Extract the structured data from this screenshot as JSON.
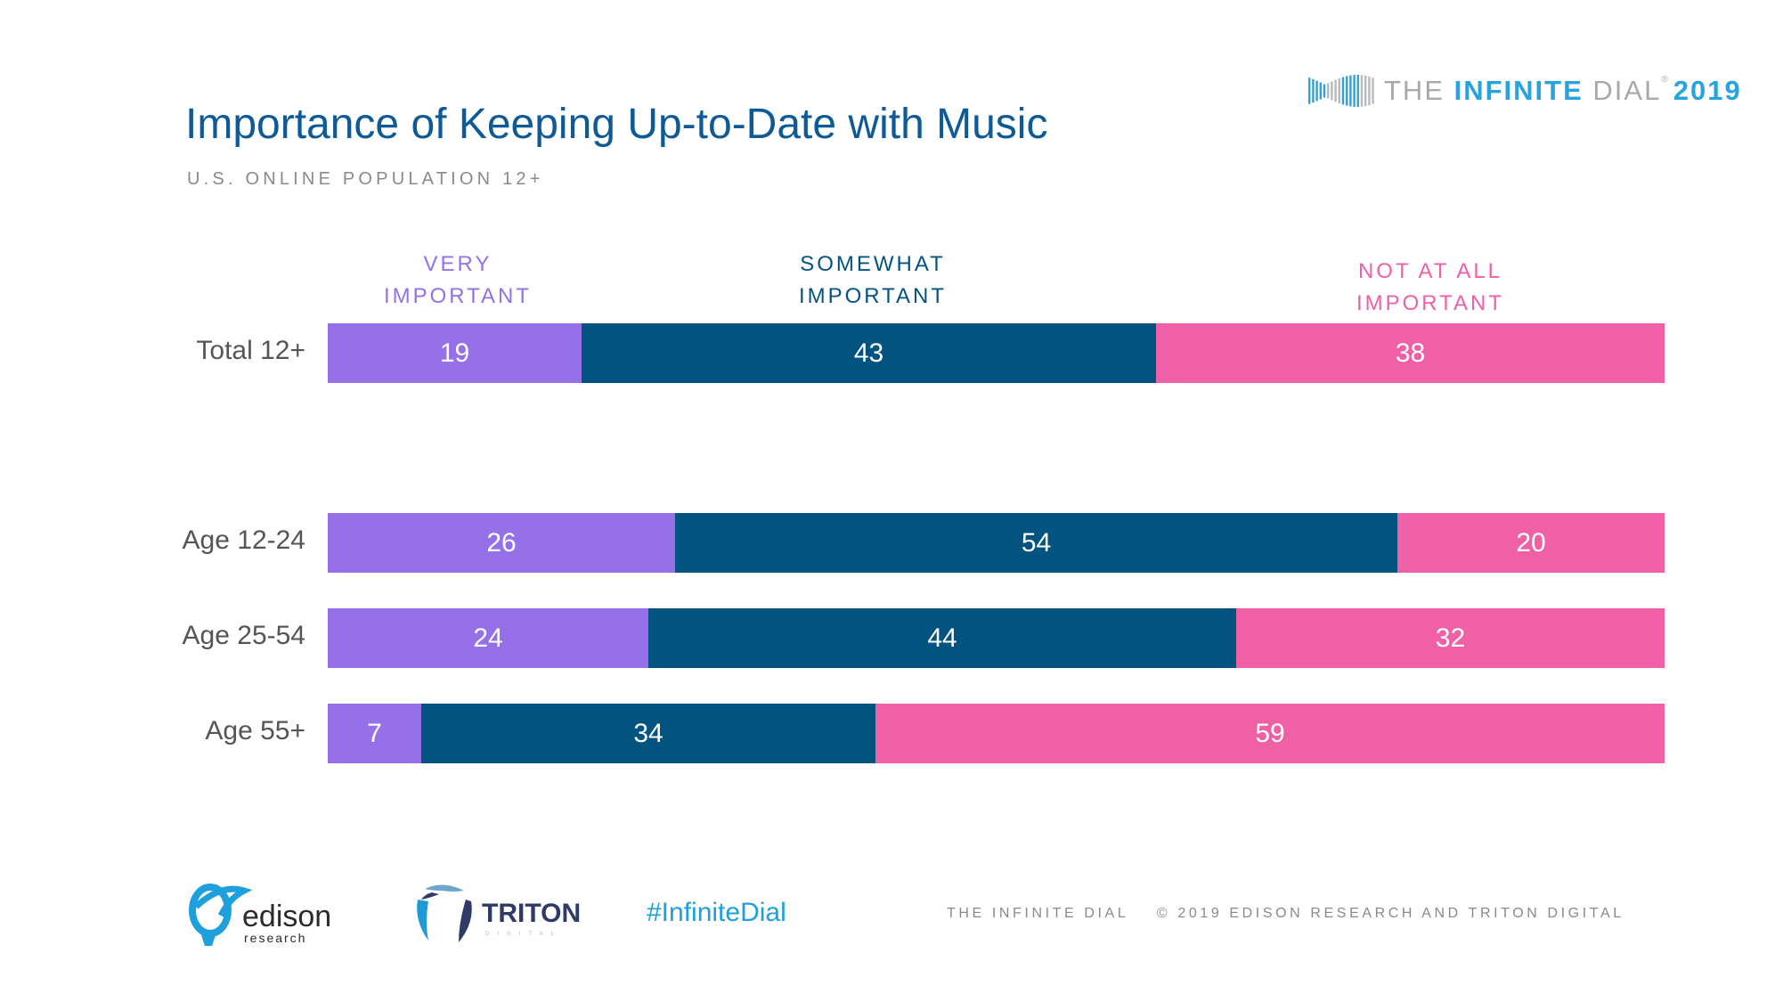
{
  "header": {
    "title": "Importance of Keeping Up-to-Date with Music",
    "subtitle": "U.S. ONLINE POPULATION 12+"
  },
  "logo": {
    "icon": "infinity-dial-icon",
    "word_the": "THE",
    "word_infinite": "INFINITE",
    "word_dial": "DIAL",
    "registered": "®",
    "year": "2019"
  },
  "colors": {
    "very": "#9570e8",
    "somewhat": "#035381",
    "notatall": "#ef60a6",
    "title": "#0e5a97",
    "accent": "#27a3de"
  },
  "chart_data": {
    "type": "bar",
    "orientation": "horizontal",
    "stacked": true,
    "title": "Importance of Keeping Up-to-Date with Music",
    "subtitle": "U.S. ONLINE POPULATION 12+",
    "categories": [
      "Total 12+",
      "Age 12-24",
      "Age 25-54",
      "Age 55+"
    ],
    "series": [
      {
        "name": "VERY IMPORTANT",
        "legend_lines": [
          "VERY",
          "IMPORTANT"
        ],
        "color": "#9570e8",
        "values": [
          19,
          26,
          24,
          7
        ]
      },
      {
        "name": "SOMEWHAT IMPORTANT",
        "legend_lines": [
          "SOMEWHAT",
          "IMPORTANT"
        ],
        "color": "#035381",
        "values": [
          43,
          54,
          44,
          34
        ]
      },
      {
        "name": "NOT AT ALL IMPORTANT",
        "legend_lines": [
          "NOT AT ALL",
          "IMPORTANT"
        ],
        "color": "#ef60a6",
        "values": [
          38,
          20,
          32,
          59
        ]
      }
    ],
    "xlim": [
      0,
      100
    ],
    "unit": "%",
    "legend_position": "top",
    "grid": false
  },
  "footer": {
    "edison_word": "edison",
    "edison_sub": "research",
    "triton_word": "TRITON",
    "triton_sub": "DIGITAL",
    "hashtag": "#InfiniteDial",
    "copyright": "THE INFINITE DIAL    © 2019 EDISON RESEARCH AND TRITON DIGITAL"
  }
}
